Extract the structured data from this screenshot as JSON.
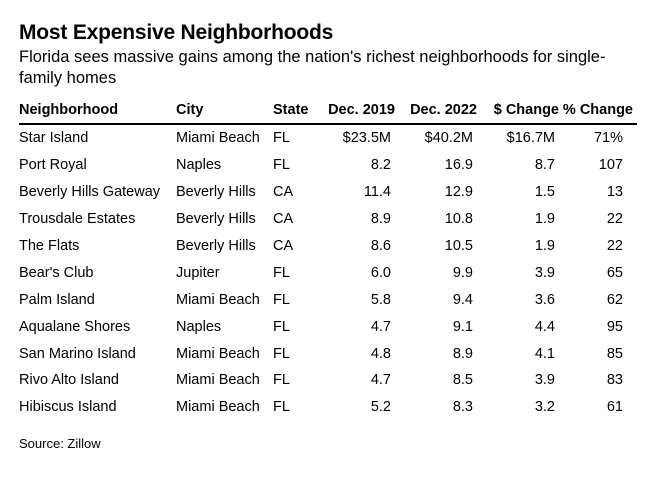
{
  "title": "Most Expensive Neighborhoods",
  "subtitle": "Florida sees massive gains among the nation's richest neighborhoods for single-family homes",
  "source": "Source: Zillow",
  "chart_data": {
    "type": "table",
    "columns": [
      "Neighborhood",
      "City",
      "State",
      "Dec. 2019",
      "Dec. 2022",
      "$ Change",
      "% Change"
    ],
    "rows": [
      [
        "Star Island",
        "Miami Beach",
        "FL",
        "$23.5M",
        "$40.2M",
        "$16.7M",
        "71%"
      ],
      [
        "Port Royal",
        "Naples",
        "FL",
        "8.2",
        "16.9",
        "8.7",
        "107"
      ],
      [
        "Beverly Hills Gateway",
        "Beverly Hills",
        "CA",
        "11.4",
        "12.9",
        "1.5",
        "13"
      ],
      [
        "Trousdale Estates",
        "Beverly Hills",
        "CA",
        "8.9",
        "10.8",
        "1.9",
        "22"
      ],
      [
        "The Flats",
        "Beverly Hills",
        "CA",
        "8.6",
        "10.5",
        "1.9",
        "22"
      ],
      [
        "Bear's Club",
        "Jupiter",
        "FL",
        "6.0",
        "9.9",
        "3.9",
        "65"
      ],
      [
        "Palm Island",
        "Miami Beach",
        "FL",
        "5.8",
        "9.4",
        "3.6",
        "62"
      ],
      [
        "Aqualane Shores",
        "Naples",
        "FL",
        "4.7",
        "9.1",
        "4.4",
        "95"
      ],
      [
        "San Marino Island",
        "Miami Beach",
        "FL",
        "4.8",
        "8.9",
        "4.1",
        "85"
      ],
      [
        "Rivo Alto Island",
        "Miami Beach",
        "FL",
        "4.7",
        "8.5",
        "3.9",
        "83"
      ],
      [
        "Hibiscus Island",
        "Miami Beach",
        "FL",
        "5.2",
        "8.3",
        "3.2",
        "61"
      ]
    ]
  }
}
